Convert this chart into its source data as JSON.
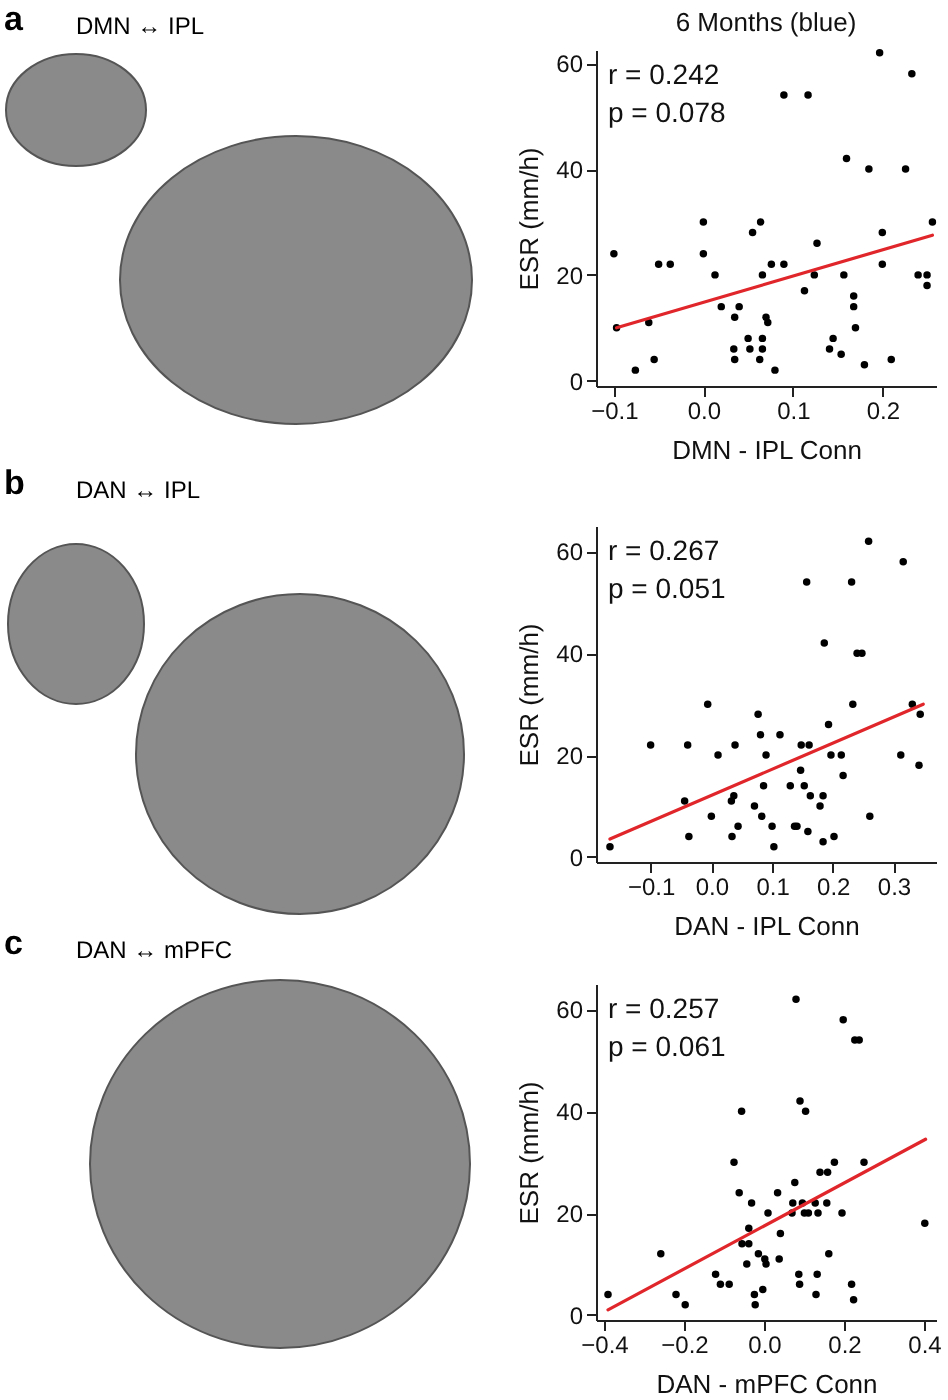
{
  "chart_data": [
    {
      "type": "scatter",
      "title": "6 Months (blue)",
      "xlabel": "DMN - IPL Conn",
      "ylabel": "ESR (mm/h)",
      "annotations": [
        "a",
        "DMN ↔ IPL",
        "r = 0.242",
        "p = 0.078"
      ],
      "grid": false,
      "xlim": [
        -0.12,
        0.26
      ],
      "ylim": [
        -1,
        62.5
      ],
      "xticks": [
        {
          "value": -0.1,
          "label": "−0.1"
        },
        {
          "value": 0,
          "label": "0.0"
        },
        0.1,
        0.2
      ],
      "yticks": [
        0,
        20,
        40,
        60
      ],
      "series": [
        {
          "marker": "circle",
          "color": "#000000",
          "x": [
            -0.1,
            -0.097,
            -0.076,
            -0.061,
            -0.055,
            -0.05,
            -0.037,
            0.0,
            0.0,
            0.013,
            0.02,
            0.04,
            0.035,
            0.034,
            0.035,
            0.05,
            0.052,
            0.055,
            0.064,
            0.066,
            0.063,
            0.066,
            0.066,
            0.07,
            0.072,
            0.076,
            0.08,
            0.09,
            0.09,
            0.117,
            0.113,
            0.124,
            0.127,
            0.141,
            0.145,
            0.154,
            0.157,
            0.16,
            0.168,
            0.168,
            0.17,
            0.18,
            0.185,
            0.197,
            0.2,
            0.2,
            0.21,
            0.226,
            0.233,
            0.24,
            0.25,
            0.25,
            0.256
          ],
          "values": [
            24,
            10,
            2,
            11,
            4,
            22,
            22,
            30,
            24,
            20,
            14,
            14,
            12,
            6,
            4,
            8,
            6,
            28,
            30,
            20,
            4,
            8,
            6,
            12,
            11,
            22,
            2,
            22,
            54,
            54,
            17,
            20,
            26,
            6,
            8,
            5,
            20,
            42,
            16,
            14,
            10,
            3,
            40,
            62,
            28,
            22,
            4,
            40,
            58,
            20,
            20,
            18,
            30
          ]
        },
        {
          "type": "line",
          "color": "#e0262a",
          "x": [
            -0.097,
            0.256
          ],
          "values": [
            10,
            27.5
          ]
        }
      ]
    },
    {
      "type": "scatter",
      "xlabel": "DAN - IPL Conn",
      "ylabel": "ESR (mm/h)",
      "annotations": [
        "b",
        "DAN ↔ IPL",
        "r = 0.267",
        "p = 0.051"
      ],
      "grid": false,
      "xlim": [
        -0.19,
        0.37
      ],
      "ylim": [
        -1,
        65
      ],
      "xticks": [
        {
          "value": -0.1,
          "label": "−0.1"
        },
        {
          "value": 0,
          "label": "0.0"
        },
        0.1,
        0.2,
        0.3
      ],
      "yticks": [
        0,
        20,
        40,
        60
      ],
      "series": [
        {
          "marker": "circle",
          "color": "#000000",
          "x": [
            -0.167,
            -0.1,
            -0.044,
            -0.039,
            -0.037,
            -0.006,
            0.0,
            0.011,
            0.033,
            0.037,
            0.039,
            0.034,
            0.044,
            0.071,
            0.077,
            0.081,
            0.083,
            0.086,
            0.09,
            0.1,
            0.103,
            0.113,
            0.13,
            0.137,
            0.141,
            0.147,
            0.148,
            0.153,
            0.157,
            0.159,
            0.161,
            0.163,
            0.179,
            0.186,
            0.184,
            0.184,
            0.193,
            0.197,
            0.202,
            0.214,
            0.217,
            0.231,
            0.233,
            0.24,
            0.248,
            0.259,
            0.261,
            0.312,
            0.316,
            0.331,
            0.342,
            0.344
          ],
          "values": [
            2,
            22,
            11,
            22,
            4,
            30,
            8,
            20,
            11,
            12,
            22,
            4,
            6,
            10,
            28,
            24,
            8,
            14,
            20,
            6,
            2,
            24,
            14,
            6,
            6,
            17,
            22,
            14,
            54,
            5,
            22,
            12,
            10,
            42,
            12,
            3,
            26,
            20,
            4,
            20,
            16,
            54,
            30,
            40,
            40,
            62,
            8,
            20,
            58,
            30,
            18,
            28
          ]
        },
        {
          "type": "line",
          "color": "#e0262a",
          "x": [
            -0.167,
            0.349
          ],
          "values": [
            3.5,
            30
          ]
        }
      ]
    },
    {
      "type": "scatter",
      "xlabel": "DAN - mPFC Conn",
      "ylabel": "ESR (mm/h)",
      "annotations": [
        "c",
        "DAN ↔ mPFC",
        "r = 0.257",
        "p = 0.061"
      ],
      "grid": false,
      "xlim": [
        -0.42,
        0.43
      ],
      "ylim": [
        -1,
        65
      ],
      "xticks": [
        {
          "value": -0.4,
          "label": "−0.4"
        },
        {
          "value": -0.2,
          "label": "−0.2"
        },
        {
          "value": 0,
          "label": "0.0"
        },
        0.2,
        0.4
      ],
      "yticks": [
        0,
        20,
        40,
        60
      ],
      "series": [
        {
          "marker": "circle",
          "color": "#000000",
          "x": [
            -0.39,
            -0.258,
            -0.22,
            -0.197,
            -0.121,
            -0.109,
            -0.087,
            -0.075,
            -0.062,
            -0.056,
            -0.055,
            -0.043,
            -0.038,
            -0.038,
            -0.031,
            -0.024,
            -0.022,
            -0.014,
            -0.003,
            0.002,
            0.005,
            0.01,
            0.034,
            0.041,
            0.038,
            0.07,
            0.072,
            0.077,
            0.08,
            0.087,
            0.089,
            0.09,
            0.096,
            0.101,
            0.104,
            0.111,
            0.128,
            0.13,
            0.133,
            0.135,
            0.14,
            0.159,
            0.157,
            0.162,
            0.176,
            0.195,
            0.198,
            0.219,
            0.224,
            0.227,
            0.238,
            0.25,
            0.402
          ],
          "values": [
            4,
            12,
            4,
            2,
            8,
            6,
            6,
            30,
            24,
            40,
            14,
            10,
            17,
            14,
            22,
            4,
            2,
            12,
            5,
            11,
            10,
            20,
            24,
            16,
            11,
            20,
            22,
            26,
            62,
            8,
            6,
            42,
            22,
            20,
            40,
            20,
            22,
            4,
            8,
            20,
            28,
            28,
            22,
            12,
            30,
            20,
            58,
            6,
            3,
            54,
            54,
            30,
            18
          ]
        },
        {
          "type": "line",
          "color": "#e0262a",
          "x": [
            -0.39,
            0.404
          ],
          "values": [
            1,
            34.5
          ]
        }
      ]
    }
  ]
}
